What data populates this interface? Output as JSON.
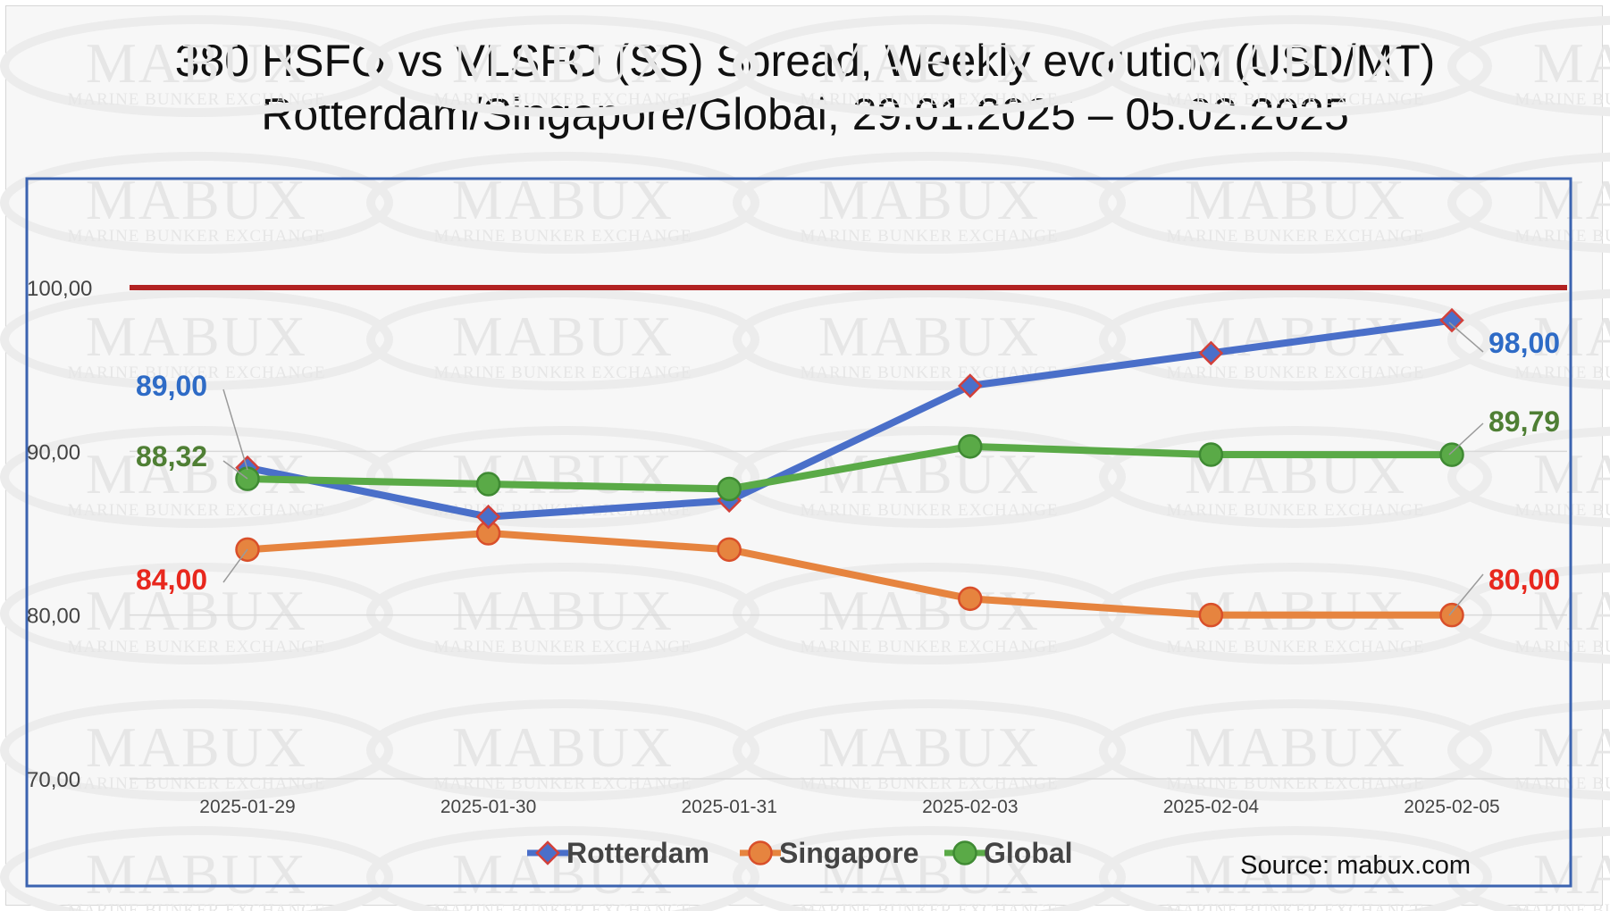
{
  "chart_data": {
    "type": "line",
    "title": "380 HSFO vs VLSFO (SS) Spread, Weekly evolution (USD/MT)",
    "subtitle": "Rotterdam/Singapore/Global, 29.01.2025 – 05.02.2025",
    "xlabel": "",
    "ylabel": "",
    "categories": [
      "2025-01-29",
      "2025-01-30",
      "2025-01-31",
      "2025-02-03",
      "2025-02-04",
      "2025-02-05"
    ],
    "ylim": [
      70,
      100
    ],
    "yticks": [
      "70,00",
      "80,00",
      "90,00",
      "100,00"
    ],
    "grid": true,
    "legend_position": "bottom",
    "reference_line": {
      "value": 100,
      "color": "#b22222"
    },
    "series": [
      {
        "name": "Rotterdam",
        "color": "#4a6fc9",
        "marker": "diamond",
        "values": [
          89.0,
          86.0,
          87.0,
          94.0,
          96.0,
          98.0
        ],
        "labels": [
          {
            "index": 0,
            "text": "89,00"
          },
          {
            "index": 5,
            "text": "98,00"
          }
        ],
        "label_color": "#2e6bc6"
      },
      {
        "name": "Singapore",
        "color": "#e6843f",
        "marker": "circle",
        "values": [
          84.0,
          85.0,
          84.0,
          81.0,
          80.0,
          80.0
        ],
        "labels": [
          {
            "index": 0,
            "text": "84,00"
          },
          {
            "index": 5,
            "text": "80,00"
          }
        ],
        "label_color": "#e8281e"
      },
      {
        "name": "Global",
        "color": "#5aaa47",
        "marker": "circle",
        "values": [
          88.32,
          88.0,
          87.7,
          90.3,
          89.8,
          89.79
        ],
        "labels": [
          {
            "index": 0,
            "text": "88,32"
          },
          {
            "index": 5,
            "text": "89,79"
          }
        ],
        "label_color": "#4f7f34"
      }
    ]
  },
  "watermark": {
    "brand": "MABUX",
    "tagline": "MARINE BUNKER EXCHANGE"
  },
  "source": "Source: mabux.com"
}
